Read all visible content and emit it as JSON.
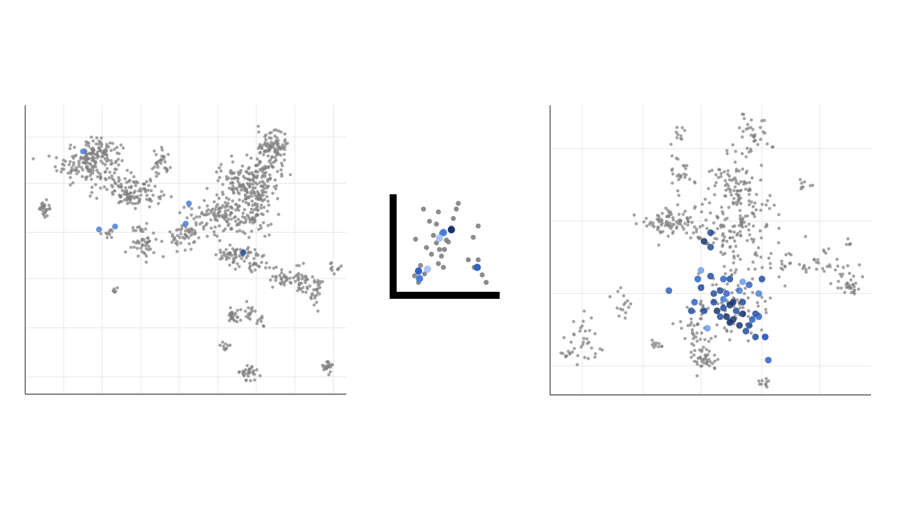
{
  "palette": {
    "background": "#ffffff",
    "grid": "#e6e6e6",
    "axis": "#333333",
    "point_base": "#7f7f7f",
    "highlight_scale": [
      "#a9c4f5",
      "#6c9be6",
      "#4a7fd4",
      "#2f62c4",
      "#234f9c",
      "#17346e"
    ]
  },
  "chart_data": [
    {
      "type": "scatter",
      "panel": "left",
      "title": "",
      "xlabel": "",
      "ylabel": "",
      "tick_labels_shown": false,
      "grid": true,
      "xlim": [
        0,
        100
      ],
      "ylim": [
        0,
        100
      ],
      "x_gridlines": [
        12,
        24,
        36,
        48,
        60,
        72,
        84,
        96
      ],
      "y_gridlines": [
        6,
        23,
        40,
        56,
        73,
        89
      ],
      "background_clusters": [
        {
          "cx": 20,
          "cy": 80,
          "sx": 5,
          "sy": 4,
          "n": 170
        },
        {
          "cx": 24,
          "cy": 84,
          "sx": 2.5,
          "sy": 2,
          "n": 40
        },
        {
          "cx": 34,
          "cy": 70,
          "sx": 4,
          "sy": 2.5,
          "n": 110
        },
        {
          "cx": 37,
          "cy": 53,
          "sx": 2,
          "sy": 3,
          "n": 50
        },
        {
          "cx": 42,
          "cy": 79,
          "sx": 1.5,
          "sy": 2.5,
          "n": 30
        },
        {
          "cx": 50,
          "cy": 55,
          "sx": 2.5,
          "sy": 2.5,
          "n": 50
        },
        {
          "cx": 60,
          "cy": 63,
          "sx": 5,
          "sy": 4,
          "n": 120
        },
        {
          "cx": 66,
          "cy": 74,
          "sx": 3,
          "sy": 3,
          "n": 60
        },
        {
          "cx": 73,
          "cy": 73,
          "sx": 3,
          "sy": 4,
          "n": 100
        },
        {
          "cx": 77,
          "cy": 84,
          "sx": 2.5,
          "sy": 4,
          "n": 110
        },
        {
          "cx": 71,
          "cy": 62,
          "sx": 3,
          "sy": 4,
          "n": 80
        },
        {
          "cx": 65,
          "cy": 48,
          "sx": 3,
          "sy": 1.5,
          "n": 50
        },
        {
          "cx": 71,
          "cy": 46,
          "sx": 2.5,
          "sy": 2,
          "n": 30
        },
        {
          "cx": 80,
          "cy": 40,
          "sx": 1.5,
          "sy": 1.5,
          "n": 30
        },
        {
          "cx": 86,
          "cy": 40,
          "sx": 1.5,
          "sy": 3,
          "n": 30
        },
        {
          "cx": 90,
          "cy": 37,
          "sx": 1.5,
          "sy": 3,
          "n": 30
        },
        {
          "cx": 96,
          "cy": 44,
          "sx": 1,
          "sy": 1,
          "n": 10
        },
        {
          "cx": 65,
          "cy": 27,
          "sx": 1,
          "sy": 1.5,
          "n": 25
        },
        {
          "cx": 70,
          "cy": 29,
          "sx": 1.5,
          "sy": 2,
          "n": 15
        },
        {
          "cx": 62,
          "cy": 16,
          "sx": 1,
          "sy": 1,
          "n": 10
        },
        {
          "cx": 70,
          "cy": 8,
          "sx": 1.5,
          "sy": 1.5,
          "n": 30
        },
        {
          "cx": 73,
          "cy": 25,
          "sx": 1,
          "sy": 1,
          "n": 8
        },
        {
          "cx": 94,
          "cy": 9,
          "sx": 1,
          "sy": 1,
          "n": 20
        },
        {
          "cx": 6,
          "cy": 64,
          "sx": 1,
          "sy": 1.5,
          "n": 25
        },
        {
          "cx": 28,
          "cy": 36,
          "sx": 0.5,
          "sy": 0.5,
          "n": 6
        },
        {
          "cx": 26,
          "cy": 56,
          "sx": 1,
          "sy": 1,
          "n": 10
        }
      ],
      "highlighted": [
        {
          "x": 18,
          "y": 84,
          "level": 2
        },
        {
          "x": 23,
          "y": 57,
          "level": 2
        },
        {
          "x": 28,
          "y": 58,
          "level": 2
        },
        {
          "x": 51,
          "y": 66,
          "level": 2
        },
        {
          "x": 50,
          "y": 59,
          "level": 2
        },
        {
          "x": 68,
          "y": 49,
          "level": 4
        }
      ]
    },
    {
      "type": "scatter",
      "panel": "center",
      "title": "",
      "xlabel": "",
      "ylabel": "",
      "tick_labels_shown": false,
      "grid": false,
      "xlim": [
        0,
        100
      ],
      "ylim": [
        0,
        100
      ],
      "background": [
        [
          27,
          88
        ],
        [
          19,
          56
        ],
        [
          33,
          75
        ],
        [
          42,
          85
        ],
        [
          40,
          72
        ],
        [
          37,
          60
        ],
        [
          45,
          62
        ],
        [
          50,
          55
        ],
        [
          55,
          68
        ],
        [
          57,
          78
        ],
        [
          60,
          88
        ],
        [
          62,
          94
        ],
        [
          52,
          53
        ],
        [
          40,
          52
        ],
        [
          43,
          45
        ],
        [
          30,
          47
        ],
        [
          35,
          40
        ],
        [
          48,
          45
        ],
        [
          45,
          38
        ],
        [
          42,
          30
        ],
        [
          77,
          58
        ],
        [
          82,
          70
        ],
        [
          82,
          34
        ],
        [
          72,
          34
        ],
        [
          78,
          26
        ],
        [
          86,
          18
        ],
        [
          90,
          10
        ],
        [
          18,
          17
        ],
        [
          22,
          10
        ],
        [
          24,
          28
        ],
        [
          28,
          19
        ],
        [
          47,
          26
        ]
      ],
      "highlighted": [
        {
          "x": 47,
          "y": 63,
          "level": 2
        },
        {
          "x": 55,
          "y": 66,
          "level": 5
        },
        {
          "x": 43,
          "y": 57,
          "level": 0
        },
        {
          "x": 22,
          "y": 22,
          "level": 3
        },
        {
          "x": 31,
          "y": 24,
          "level": 0
        },
        {
          "x": 23,
          "y": 14,
          "level": 2
        },
        {
          "x": 81,
          "y": 26,
          "level": 3
        }
      ]
    },
    {
      "type": "scatter",
      "panel": "right",
      "title": "",
      "xlabel": "",
      "ylabel": "",
      "tick_labels_shown": false,
      "grid": true,
      "xlim": [
        0,
        100
      ],
      "ylim": [
        0,
        100
      ],
      "x_gridlines": [
        10,
        29,
        47,
        66,
        84
      ],
      "y_gridlines": [
        10,
        35,
        60,
        85
      ],
      "background_clusters": [
        {
          "cx": 58,
          "cy": 60,
          "sx": 6,
          "sy": 10,
          "n": 170
        },
        {
          "cx": 57,
          "cy": 72,
          "sx": 3,
          "sy": 3,
          "n": 40
        },
        {
          "cx": 63,
          "cy": 88,
          "sx": 3,
          "sy": 5,
          "n": 40
        },
        {
          "cx": 40,
          "cy": 60,
          "sx": 6,
          "sy": 2.5,
          "n": 60
        },
        {
          "cx": 36,
          "cy": 59,
          "sx": 2,
          "sy": 2,
          "n": 30
        },
        {
          "cx": 80,
          "cy": 45,
          "sx": 8,
          "sy": 3,
          "n": 50
        },
        {
          "cx": 93,
          "cy": 38,
          "sx": 2,
          "sy": 2,
          "n": 30
        },
        {
          "cx": 57,
          "cy": 30,
          "sx": 5,
          "sy": 6,
          "n": 80
        },
        {
          "cx": 48,
          "cy": 12,
          "sx": 2.5,
          "sy": 2,
          "n": 40
        },
        {
          "cx": 45,
          "cy": 22,
          "sx": 3,
          "sy": 4,
          "n": 30
        },
        {
          "cx": 66,
          "cy": 5,
          "sx": 1,
          "sy": 1,
          "n": 10
        },
        {
          "cx": 40,
          "cy": 76,
          "sx": 2,
          "sy": 3,
          "n": 25
        },
        {
          "cx": 40,
          "cy": 90,
          "sx": 1,
          "sy": 2,
          "n": 10
        },
        {
          "cx": 10,
          "cy": 20,
          "sx": 3,
          "sy": 4,
          "n": 30
        },
        {
          "cx": 5,
          "cy": 14,
          "sx": 1.5,
          "sy": 1,
          "n": 10
        },
        {
          "cx": 22,
          "cy": 31,
          "sx": 1.5,
          "sy": 3,
          "n": 15
        },
        {
          "cx": 33,
          "cy": 17,
          "sx": 1,
          "sy": 1,
          "n": 10
        },
        {
          "cx": 47,
          "cy": 30,
          "sx": 1,
          "sy": 1,
          "n": 10
        },
        {
          "cx": 79,
          "cy": 73,
          "sx": 1,
          "sy": 1,
          "n": 8
        },
        {
          "cx": 93,
          "cy": 52,
          "sx": 1,
          "sy": 1,
          "n": 5
        }
      ],
      "highlighted": [
        {
          "x": 53,
          "y": 27,
          "level": 4
        },
        {
          "x": 55,
          "y": 27,
          "level": 5
        },
        {
          "x": 57,
          "y": 26,
          "level": 5
        },
        {
          "x": 54,
          "y": 30,
          "level": 4
        },
        {
          "x": 58,
          "y": 29,
          "level": 4
        },
        {
          "x": 56,
          "y": 31,
          "level": 5
        },
        {
          "x": 51,
          "y": 32,
          "level": 4
        },
        {
          "x": 52,
          "y": 29,
          "level": 5
        },
        {
          "x": 56,
          "y": 25,
          "level": 5
        },
        {
          "x": 60,
          "y": 32,
          "level": 4
        },
        {
          "x": 59,
          "y": 24,
          "level": 5
        },
        {
          "x": 61,
          "y": 22,
          "level": 4
        },
        {
          "x": 63,
          "y": 26,
          "level": 3
        },
        {
          "x": 59,
          "y": 36,
          "level": 2
        },
        {
          "x": 62,
          "y": 38,
          "level": 3
        },
        {
          "x": 56,
          "y": 40,
          "level": 4
        },
        {
          "x": 50,
          "y": 41,
          "level": 4
        },
        {
          "x": 54,
          "y": 40,
          "level": 3
        },
        {
          "x": 47,
          "y": 43,
          "level": 1
        },
        {
          "x": 66,
          "y": 40,
          "level": 4
        },
        {
          "x": 48,
          "y": 53,
          "level": 5
        },
        {
          "x": 50,
          "y": 56,
          "level": 4
        },
        {
          "x": 50,
          "y": 51,
          "level": 4
        },
        {
          "x": 45,
          "y": 32,
          "level": 3
        },
        {
          "x": 37,
          "y": 36,
          "level": 3
        },
        {
          "x": 49,
          "y": 23,
          "level": 1
        },
        {
          "x": 48,
          "y": 29,
          "level": 4
        },
        {
          "x": 64,
          "y": 20,
          "level": 4
        },
        {
          "x": 67,
          "y": 20,
          "level": 3
        },
        {
          "x": 64,
          "y": 28,
          "level": 4
        },
        {
          "x": 65,
          "y": 27,
          "level": 3
        },
        {
          "x": 51,
          "y": 35,
          "level": 4
        },
        {
          "x": 47,
          "y": 37,
          "level": 4
        },
        {
          "x": 44,
          "y": 29,
          "level": 4
        },
        {
          "x": 54,
          "y": 33,
          "level": 2
        },
        {
          "x": 67,
          "y": 20,
          "level": 3
        },
        {
          "x": 46,
          "y": 40,
          "level": 3
        },
        {
          "x": 60,
          "y": 28,
          "level": 5
        },
        {
          "x": 55,
          "y": 35,
          "level": 3
        },
        {
          "x": 65,
          "y": 35,
          "level": 2
        },
        {
          "x": 57,
          "y": 32,
          "level": 5
        },
        {
          "x": 62,
          "y": 24,
          "level": 4
        },
        {
          "x": 53,
          "y": 36,
          "level": 4
        },
        {
          "x": 68,
          "y": 12,
          "level": 3
        },
        {
          "x": 46,
          "y": 40,
          "level": 2
        },
        {
          "x": 60,
          "y": 39,
          "level": 1
        }
      ]
    }
  ]
}
